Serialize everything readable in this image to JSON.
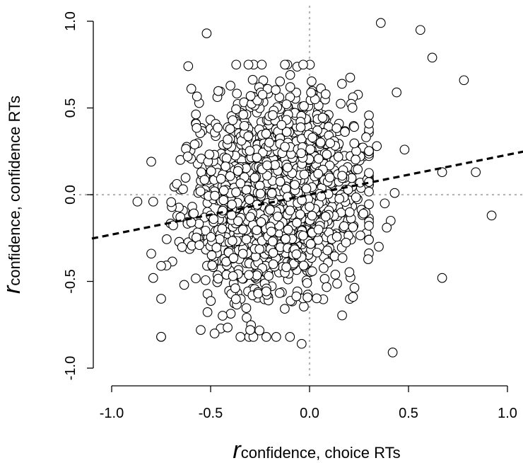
{
  "chart_data": {
    "type": "scatter",
    "xlabel": {
      "symbol": "r",
      "subscript": "confidence, choice RTs"
    },
    "ylabel": {
      "symbol": "r",
      "subscript": "confidence, confidence RTs"
    },
    "xlim": [
      -1.0,
      1.0
    ],
    "ylim": [
      -1.0,
      1.0
    ],
    "x_ticks": [
      "-1.0",
      "-0.5",
      "0.0",
      "0.5",
      "1.0"
    ],
    "y_ticks": [
      "-1.0",
      "-0.5",
      "0.0",
      "0.5",
      "1.0"
    ],
    "reference_lines": {
      "x": 0.0,
      "y": 0.0,
      "style": "dotted",
      "color": "#b5b5b5"
    },
    "regression_line": {
      "intercept": 0.0,
      "slope": 0.23,
      "style": "dashed",
      "color": "#000000"
    },
    "grid": false,
    "legend": "none",
    "marker": {
      "shape": "circle",
      "fill": "#ffffff",
      "stroke": "#000000"
    },
    "cloud": {
      "n": 1650,
      "x_mean": -0.17,
      "x_sd": 0.215,
      "x_range": [
        -0.75,
        0.3
      ],
      "y_mean": 0.0,
      "y_sd": 0.28,
      "y_range": [
        -0.82,
        0.75
      ],
      "correlation": 0.12,
      "seed": 7
    },
    "outliers": [
      {
        "x": -0.52,
        "y": 0.93
      },
      {
        "x": 0.36,
        "y": 0.99
      },
      {
        "x": 0.56,
        "y": 0.95
      },
      {
        "x": 0.62,
        "y": 0.79
      },
      {
        "x": 0.78,
        "y": 0.66
      },
      {
        "x": 0.44,
        "y": 0.59
      },
      {
        "x": 0.48,
        "y": 0.26
      },
      {
        "x": 0.67,
        "y": 0.13
      },
      {
        "x": 0.84,
        "y": 0.13
      },
      {
        "x": 0.92,
        "y": -0.12
      },
      {
        "x": 0.67,
        "y": -0.48
      },
      {
        "x": 0.42,
        "y": -0.91
      },
      {
        "x": -0.04,
        "y": -0.86
      },
      {
        "x": 0.41,
        "y": -0.15
      },
      {
        "x": 0.43,
        "y": 0.01
      },
      {
        "x": 0.38,
        "y": -0.05
      },
      {
        "x": 0.39,
        "y": -0.19
      },
      {
        "x": 0.35,
        "y": -0.3
      },
      {
        "x": 0.34,
        "y": 0.28
      },
      {
        "x": 0.3,
        "y": 0.41
      },
      {
        "x": -0.87,
        "y": -0.04
      },
      {
        "x": -0.8,
        "y": 0.19
      },
      {
        "x": -0.79,
        "y": -0.04
      },
      {
        "x": -0.8,
        "y": -0.34
      },
      {
        "x": -0.79,
        "y": -0.48
      },
      {
        "x": -0.75,
        "y": -0.6
      },
      {
        "x": -0.55,
        "y": -0.78
      },
      {
        "x": -0.48,
        "y": -0.8
      },
      {
        "x": -0.3,
        "y": -0.78
      }
    ]
  }
}
